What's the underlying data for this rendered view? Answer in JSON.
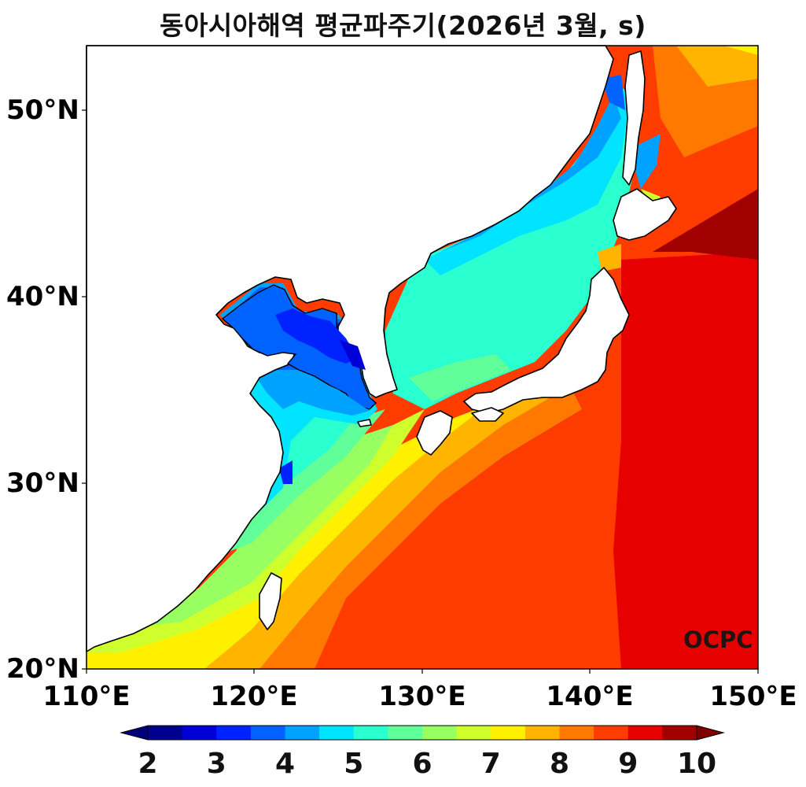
{
  "title": "동아시아해역 평균파주기(2026년 3월, s)",
  "y_axis_labels": [
    "50°N",
    "40°N",
    "30°N",
    "20°N"
  ],
  "x_axis_labels": [
    "110°E",
    "120°E",
    "130°E",
    "140°E",
    "150°E"
  ],
  "colorbar": {
    "tick_labels": [
      "2",
      "3",
      "4",
      "5",
      "6",
      "7",
      "8",
      "9",
      "10"
    ],
    "colors": [
      "#00008f",
      "#0000d6",
      "#0022ff",
      "#0062ff",
      "#00a2ff",
      "#00e4ff",
      "#2affd0",
      "#60ff9a",
      "#98ff62",
      "#ceff2c",
      "#fff000",
      "#ffb400",
      "#ff7800",
      "#ff3c00",
      "#e60000",
      "#a00000"
    ],
    "under_color": "#00007a",
    "over_color": "#800000"
  },
  "credit": "OCPC"
}
